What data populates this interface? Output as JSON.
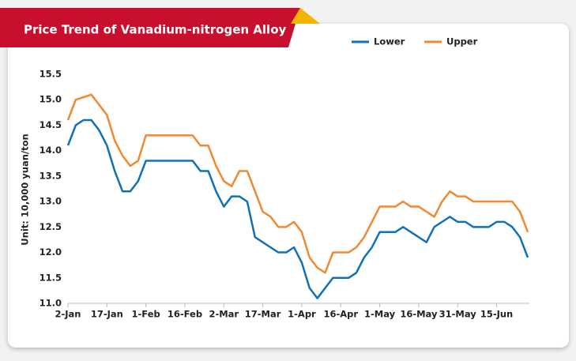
{
  "chart_data": {
    "type": "line",
    "title": "Price Trend of Vanadium-nitrogen Alloy",
    "y_label": "Unit: 10,000 yuan/ton",
    "categories": [
      "2-Jan",
      null,
      null,
      null,
      null,
      "17-Jan",
      null,
      null,
      null,
      null,
      "1-Feb",
      null,
      null,
      null,
      null,
      "16-Feb",
      null,
      null,
      null,
      null,
      "2-Mar",
      null,
      null,
      null,
      null,
      "17-Mar",
      null,
      null,
      null,
      null,
      "1-Apr",
      null,
      null,
      null,
      null,
      "16-Apr",
      null,
      null,
      null,
      null,
      "1-May",
      null,
      null,
      null,
      null,
      "16-May",
      null,
      null,
      null,
      null,
      "31-May",
      null,
      null,
      null,
      null,
      "15-Jun",
      null,
      null,
      null,
      null
    ],
    "series": [
      {
        "name": "Lower",
        "color": "#1070b8",
        "values": [
          14.1,
          14.5,
          14.6,
          14.6,
          14.4,
          14.1,
          13.6,
          13.2,
          13.2,
          13.4,
          13.8,
          13.8,
          13.8,
          13.8,
          13.8,
          13.8,
          13.8,
          13.6,
          13.6,
          13.2,
          12.9,
          13.1,
          13.1,
          13.0,
          12.3,
          12.2,
          12.1,
          12.0,
          12.0,
          12.1,
          11.8,
          11.3,
          11.1,
          11.3,
          11.5,
          11.5,
          11.5,
          11.6,
          11.9,
          12.1,
          12.4,
          12.4,
          12.4,
          12.5,
          12.4,
          12.3,
          12.2,
          12.5,
          12.6,
          12.7,
          12.6,
          12.6,
          12.5,
          12.5,
          12.5,
          12.6,
          12.6,
          12.5,
          12.3,
          11.9
        ]
      },
      {
        "name": "Upper",
        "color": "#ef8a33",
        "values": [
          14.6,
          15.0,
          15.05,
          15.1,
          14.9,
          14.7,
          14.2,
          13.9,
          13.7,
          13.8,
          14.3,
          14.3,
          14.3,
          14.3,
          14.3,
          14.3,
          14.3,
          14.1,
          14.1,
          13.7,
          13.4,
          13.3,
          13.6,
          13.6,
          13.2,
          12.8,
          12.7,
          12.5,
          12.5,
          12.6,
          12.4,
          11.9,
          11.7,
          11.6,
          12.0,
          12.0,
          12.0,
          12.1,
          12.3,
          12.6,
          12.9,
          12.9,
          12.9,
          13.0,
          12.9,
          12.9,
          12.8,
          12.7,
          13.0,
          13.2,
          13.1,
          13.1,
          13.0,
          13.0,
          13.0,
          13.0,
          13.0,
          13.0,
          12.8,
          12.4
        ]
      }
    ],
    "ylim": [
      11,
      15.5
    ],
    "yticks": [
      {
        "value": 11,
        "label": "11.0"
      },
      11.5,
      {
        "value": 12,
        "label": "12.0"
      },
      12.5,
      {
        "value": 13,
        "label": "13.0"
      },
      13.5,
      {
        "value": 14,
        "label": "14.0"
      },
      14.5,
      {
        "value": 15,
        "label": "15.0"
      },
      15.5
    ],
    "grid": false,
    "legend": "top-right"
  }
}
